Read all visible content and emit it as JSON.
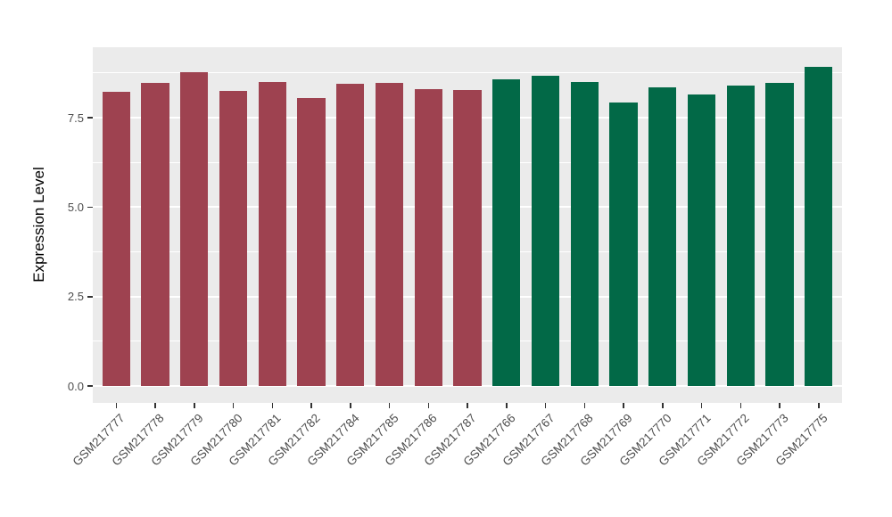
{
  "chart_data": {
    "type": "bar",
    "title": "",
    "xlabel": "",
    "ylabel": "Expression Level",
    "y_ticks": [
      {
        "value": 0.0,
        "label": "0.0"
      },
      {
        "value": 2.5,
        "label": "2.5"
      },
      {
        "value": 5.0,
        "label": "5.0"
      },
      {
        "value": 7.5,
        "label": "7.5"
      }
    ],
    "y_minor_ticks": [
      1.25,
      3.75,
      6.25,
      8.75
    ],
    "ylim": [
      -0.47,
      9.47
    ],
    "grid": true,
    "legend_position": "none",
    "bar_width_fraction": 0.71,
    "group_colors": {
      "group1": "#9E4250",
      "group2": "#026947"
    },
    "panel_background": "#EBEBEB",
    "gridline_color": "#FFFFFF",
    "axis_text_color": "#4D4D4D",
    "bars": [
      {
        "label": "GSM217777",
        "value": 8.22,
        "group": "group1"
      },
      {
        "label": "GSM217778",
        "value": 8.47,
        "group": "group1"
      },
      {
        "label": "GSM217779",
        "value": 8.77,
        "group": "group1"
      },
      {
        "label": "GSM217780",
        "value": 8.25,
        "group": "group1"
      },
      {
        "label": "GSM217781",
        "value": 8.5,
        "group": "group1"
      },
      {
        "label": "GSM217782",
        "value": 8.05,
        "group": "group1"
      },
      {
        "label": "GSM217784",
        "value": 8.45,
        "group": "group1"
      },
      {
        "label": "GSM217785",
        "value": 8.47,
        "group": "group1"
      },
      {
        "label": "GSM217786",
        "value": 8.3,
        "group": "group1"
      },
      {
        "label": "GSM217787",
        "value": 8.27,
        "group": "group1"
      },
      {
        "label": "GSM217766",
        "value": 8.58,
        "group": "group2"
      },
      {
        "label": "GSM217767",
        "value": 8.67,
        "group": "group2"
      },
      {
        "label": "GSM217768",
        "value": 8.5,
        "group": "group2"
      },
      {
        "label": "GSM217769",
        "value": 7.92,
        "group": "group2"
      },
      {
        "label": "GSM217770",
        "value": 8.34,
        "group": "group2"
      },
      {
        "label": "GSM217771",
        "value": 8.16,
        "group": "group2"
      },
      {
        "label": "GSM217772",
        "value": 8.4,
        "group": "group2"
      },
      {
        "label": "GSM217773",
        "value": 8.48,
        "group": "group2"
      },
      {
        "label": "GSM217775",
        "value": 8.93,
        "group": "group2"
      }
    ]
  }
}
